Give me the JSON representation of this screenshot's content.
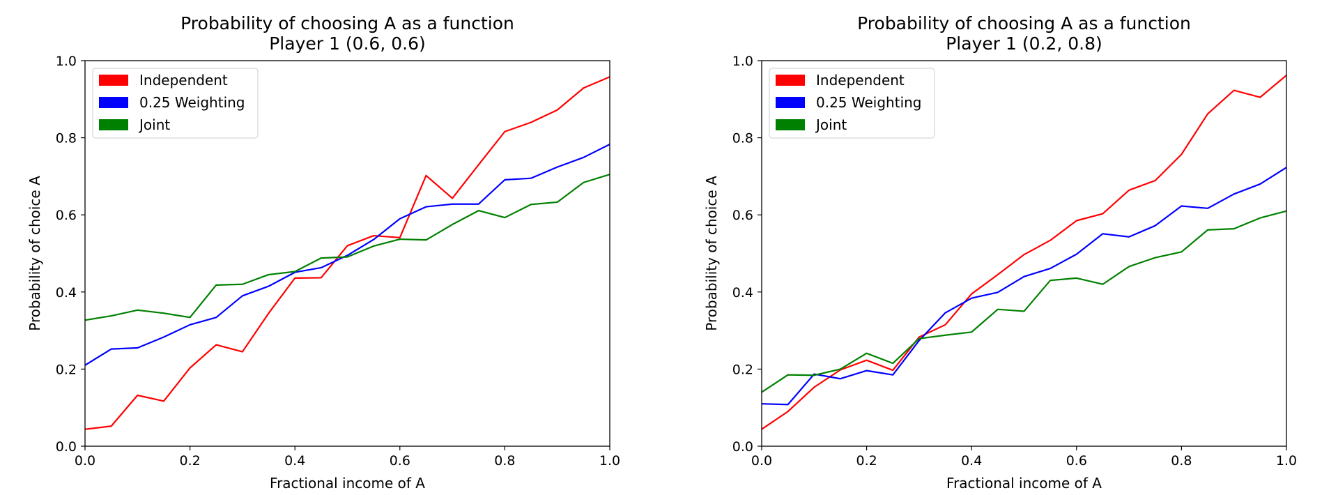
{
  "chart_data": [
    {
      "type": "line",
      "title": [
        "Probability of choosing A as a function",
        "Player 1 (0.6, 0.6)"
      ],
      "xlabel": "Fractional income of A",
      "ylabel": "Probability of choice A",
      "xlim": [
        0,
        1
      ],
      "ylim": [
        0,
        1
      ],
      "xticks": [
        "0.0",
        "0.2",
        "0.4",
        "0.6",
        "0.8",
        "1.0"
      ],
      "yticks": [
        "0.0",
        "0.2",
        "0.4",
        "0.6",
        "0.8",
        "1.0"
      ],
      "grid": false,
      "legend_position": "top-left",
      "x": [
        0,
        0.05,
        0.1,
        0.15,
        0.2,
        0.25,
        0.3,
        0.35,
        0.4,
        0.45,
        0.5,
        0.55,
        0.6,
        0.65,
        0.7,
        0.75,
        0.8,
        0.85,
        0.9,
        0.95,
        1.0
      ],
      "series": [
        {
          "name": "Independent",
          "color": "#ff0000",
          "values": [
            0.044,
            0.052,
            0.132,
            0.117,
            0.203,
            0.263,
            0.245,
            0.345,
            0.436,
            0.437,
            0.52,
            0.546,
            0.541,
            0.702,
            0.643,
            0.73,
            0.816,
            0.84,
            0.872,
            0.929,
            0.958
          ]
        },
        {
          "name": "0.25 Weighting",
          "color": "#0000ff",
          "values": [
            0.21,
            0.252,
            0.255,
            0.283,
            0.315,
            0.334,
            0.39,
            0.415,
            0.451,
            0.463,
            0.495,
            0.536,
            0.59,
            0.621,
            0.628,
            0.628,
            0.691,
            0.695,
            0.724,
            0.749,
            0.783
          ]
        },
        {
          "name": "Joint",
          "color": "#008000",
          "values": [
            0.327,
            0.338,
            0.353,
            0.345,
            0.334,
            0.418,
            0.42,
            0.445,
            0.453,
            0.488,
            0.491,
            0.519,
            0.537,
            0.535,
            0.575,
            0.611,
            0.593,
            0.627,
            0.633,
            0.684,
            0.705
          ]
        }
      ]
    },
    {
      "type": "line",
      "title": [
        "Probability of choosing A as a function",
        "Player 1 (0.2, 0.8)"
      ],
      "xlabel": "Fractional income of A",
      "ylabel": "Probability of choice A",
      "xlim": [
        0,
        1
      ],
      "ylim": [
        0,
        1
      ],
      "xticks": [
        "0.0",
        "0.2",
        "0.4",
        "0.6",
        "0.8",
        "1.0"
      ],
      "yticks": [
        "0.0",
        "0.2",
        "0.4",
        "0.6",
        "0.8",
        "1.0"
      ],
      "grid": false,
      "legend_position": "top-left",
      "x": [
        0,
        0.05,
        0.1,
        0.15,
        0.2,
        0.25,
        0.3,
        0.35,
        0.4,
        0.45,
        0.5,
        0.55,
        0.6,
        0.65,
        0.7,
        0.75,
        0.8,
        0.85,
        0.9,
        0.95,
        1.0
      ],
      "series": [
        {
          "name": "Independent",
          "color": "#ff0000",
          "values": [
            0.044,
            0.09,
            0.153,
            0.198,
            0.223,
            0.197,
            0.283,
            0.315,
            0.395,
            0.445,
            0.497,
            0.534,
            0.585,
            0.603,
            0.664,
            0.689,
            0.757,
            0.862,
            0.923,
            0.905,
            0.962
          ]
        },
        {
          "name": "0.25 Weighting",
          "color": "#0000ff",
          "values": [
            0.11,
            0.108,
            0.187,
            0.175,
            0.196,
            0.185,
            0.274,
            0.346,
            0.384,
            0.399,
            0.44,
            0.461,
            0.498,
            0.551,
            0.543,
            0.572,
            0.623,
            0.617,
            0.654,
            0.68,
            0.723
          ]
        },
        {
          "name": "Joint",
          "color": "#008000",
          "values": [
            0.14,
            0.185,
            0.184,
            0.2,
            0.241,
            0.215,
            0.279,
            0.288,
            0.296,
            0.355,
            0.35,
            0.43,
            0.436,
            0.42,
            0.466,
            0.489,
            0.504,
            0.561,
            0.564,
            0.592,
            0.61
          ]
        }
      ]
    }
  ]
}
